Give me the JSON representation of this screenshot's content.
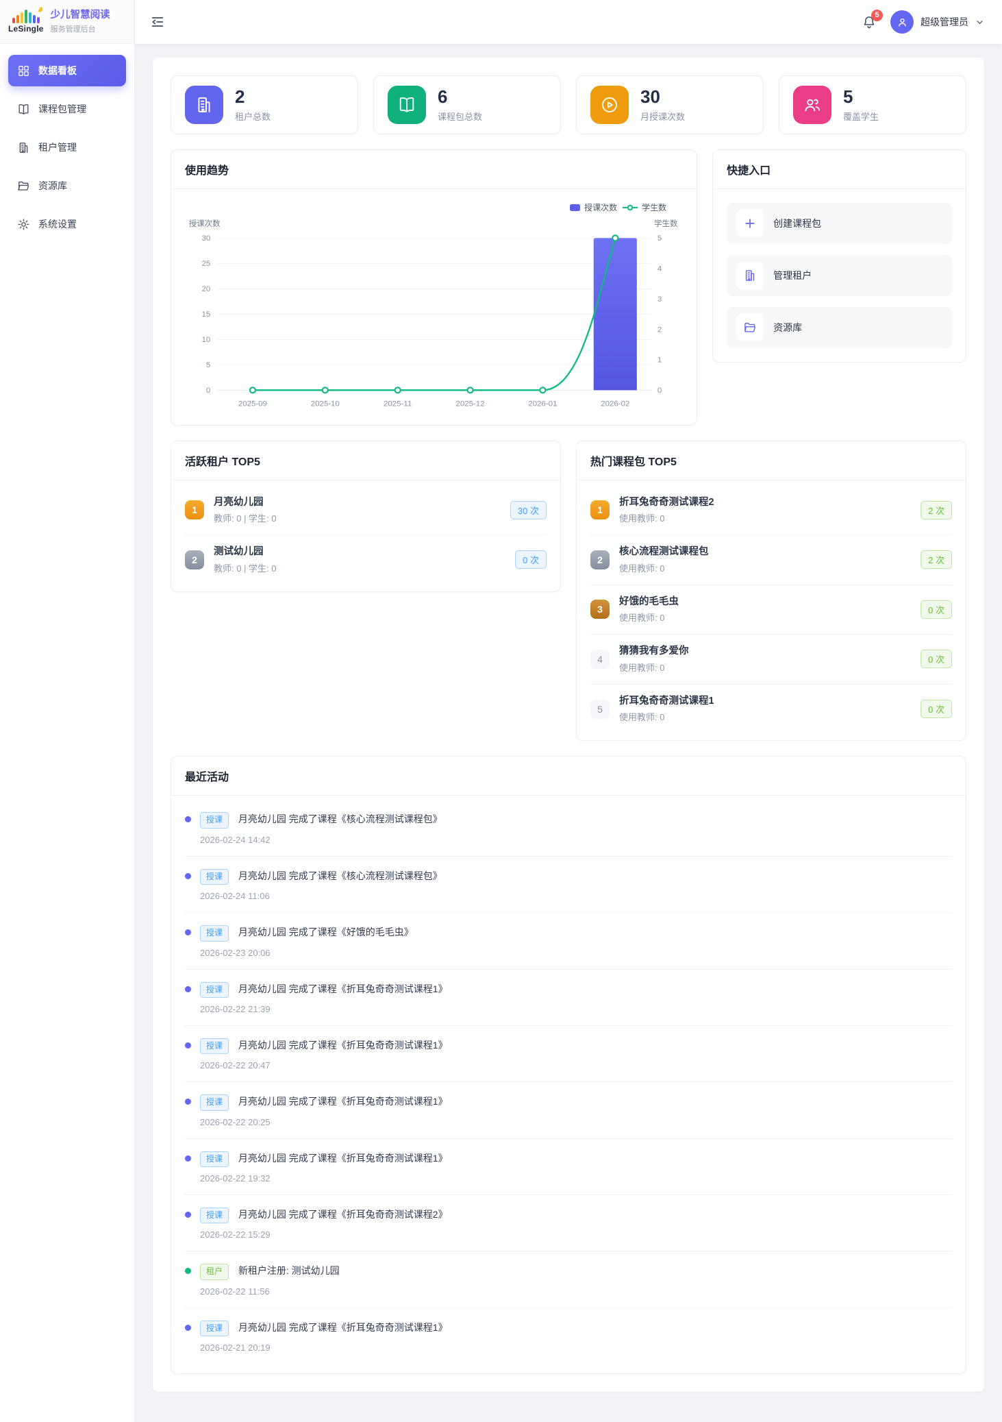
{
  "brand": {
    "logo_text": "LeSingle",
    "title": "少儿智慧阅读",
    "subtitle": "服务管理后台"
  },
  "header": {
    "notification_count": "5",
    "user_name": "超级管理员"
  },
  "sidebar": {
    "items": [
      {
        "label": "数据看板",
        "icon": "dashboard-grid-icon",
        "active": true
      },
      {
        "label": "课程包管理",
        "icon": "book-icon",
        "active": false
      },
      {
        "label": "租户管理",
        "icon": "building-icon",
        "active": false
      },
      {
        "label": "资源库",
        "icon": "folder-icon",
        "active": false
      },
      {
        "label": "系统设置",
        "icon": "gear-icon",
        "active": false
      }
    ]
  },
  "stats": [
    {
      "value": "2",
      "label": "租户总数",
      "icon": "building-icon",
      "color": "#6266ee"
    },
    {
      "value": "6",
      "label": "课程包总数",
      "icon": "book-icon",
      "color": "#10b07c"
    },
    {
      "value": "30",
      "label": "月授课次数",
      "icon": "play-icon",
      "color": "#ef9c0c"
    },
    {
      "value": "5",
      "label": "覆盖学生",
      "icon": "users-icon",
      "color": "#eb3c87"
    }
  ],
  "chart_data": {
    "type": "bar+line",
    "title": "使用趋势",
    "categories": [
      "2025-09",
      "2025-10",
      "2025-11",
      "2025-12",
      "2026-01",
      "2026-02"
    ],
    "series": [
      {
        "name": "授课次数",
        "type": "bar",
        "axis": "left",
        "color": "#5c60e8",
        "values": [
          0,
          0,
          0,
          0,
          0,
          30
        ]
      },
      {
        "name": "学生数",
        "type": "line",
        "axis": "right",
        "color": "#10b981",
        "values": [
          0,
          0,
          0,
          0,
          0,
          5
        ]
      }
    ],
    "left_axis": {
      "label": "授课次数",
      "min": 0,
      "max": 30,
      "step": 5
    },
    "right_axis": {
      "label": "学生数",
      "min": 0,
      "max": 5,
      "step": 1
    },
    "grid": true,
    "legend_position": "top-right"
  },
  "quick": {
    "title": "快捷入口",
    "items": [
      {
        "label": "创建课程包",
        "icon": "plus-icon"
      },
      {
        "label": "管理租户",
        "icon": "building-icon"
      },
      {
        "label": "资源库",
        "icon": "folder-icon"
      }
    ]
  },
  "active_tenants": {
    "title": "活跃租户 TOP5",
    "items": [
      {
        "rank": "1",
        "tier": "gold",
        "name": "月亮幼儿园",
        "sub": "教师: 0 | 学生: 0",
        "count": "30 次"
      },
      {
        "rank": "2",
        "tier": "silver",
        "name": "测试幼儿园",
        "sub": "教师: 0 | 学生: 0",
        "count": "0 次"
      }
    ]
  },
  "hot_packages": {
    "title": "热门课程包 TOP5",
    "items": [
      {
        "rank": "1",
        "tier": "gold",
        "name": "折耳兔奇奇测试课程2",
        "sub": "使用教师: 0",
        "count": "2 次"
      },
      {
        "rank": "2",
        "tier": "silver",
        "name": "核心流程测试课程包",
        "sub": "使用教师: 0",
        "count": "2 次"
      },
      {
        "rank": "3",
        "tier": "bronze",
        "name": "好饿的毛毛虫",
        "sub": "使用教师: 0",
        "count": "0 次"
      },
      {
        "rank": "4",
        "tier": "plain",
        "name": "猜猜我有多爱你",
        "sub": "使用教师: 0",
        "count": "0 次"
      },
      {
        "rank": "5",
        "tier": "plain",
        "name": "折耳兔奇奇测试课程1",
        "sub": "使用教师: 0",
        "count": "0 次"
      }
    ]
  },
  "activities": {
    "title": "最近活动",
    "items": [
      {
        "type": "teach",
        "tag": "授课",
        "text": "月亮幼儿园 完成了课程《核心流程测试课程包》",
        "time": "2026-02-24 14:42"
      },
      {
        "type": "teach",
        "tag": "授课",
        "text": "月亮幼儿园 完成了课程《核心流程测试课程包》",
        "time": "2026-02-24 11:06"
      },
      {
        "type": "teach",
        "tag": "授课",
        "text": "月亮幼儿园 完成了课程《好饿的毛毛虫》",
        "time": "2026-02-23 20:06"
      },
      {
        "type": "teach",
        "tag": "授课",
        "text": "月亮幼儿园 完成了课程《折耳兔奇奇测试课程1》",
        "time": "2026-02-22 21:39"
      },
      {
        "type": "teach",
        "tag": "授课",
        "text": "月亮幼儿园 完成了课程《折耳兔奇奇测试课程1》",
        "time": "2026-02-22 20:47"
      },
      {
        "type": "teach",
        "tag": "授课",
        "text": "月亮幼儿园 完成了课程《折耳兔奇奇测试课程1》",
        "time": "2026-02-22 20:25"
      },
      {
        "type": "teach",
        "tag": "授课",
        "text": "月亮幼儿园 完成了课程《折耳兔奇奇测试课程1》",
        "time": "2026-02-22 19:32"
      },
      {
        "type": "teach",
        "tag": "授课",
        "text": "月亮幼儿园 完成了课程《折耳兔奇奇测试课程2》",
        "time": "2026-02-22 15:29"
      },
      {
        "type": "tenant",
        "tag": "租户",
        "text": "新租户注册: 测试幼儿园",
        "time": "2026-02-22 11:56"
      },
      {
        "type": "teach",
        "tag": "授课",
        "text": "月亮幼儿园 完成了课程《折耳兔奇奇测试课程1》",
        "time": "2026-02-21 20:19"
      }
    ]
  }
}
